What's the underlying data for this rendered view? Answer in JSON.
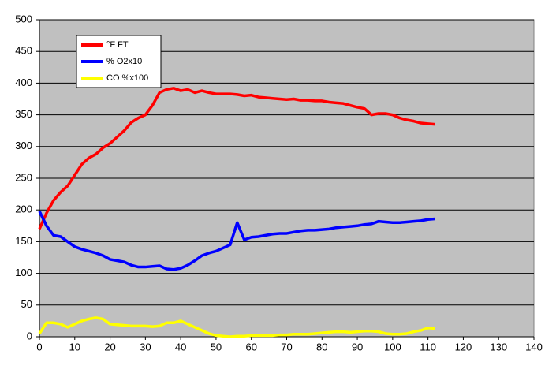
{
  "chart_data": {
    "type": "line",
    "x": [
      0,
      2,
      4,
      6,
      8,
      10,
      12,
      14,
      16,
      18,
      20,
      22,
      24,
      26,
      28,
      30,
      32,
      34,
      36,
      38,
      40,
      42,
      44,
      46,
      48,
      50,
      52,
      54,
      56,
      58,
      60,
      62,
      64,
      66,
      68,
      70,
      72,
      74,
      76,
      78,
      80,
      82,
      84,
      86,
      88,
      90,
      92,
      94,
      96,
      98,
      100,
      102,
      104,
      106,
      108,
      110,
      112
    ],
    "series": [
      {
        "name": "°F FT",
        "color": "#ff0000",
        "values": [
          170,
          195,
          215,
          228,
          238,
          255,
          272,
          282,
          288,
          298,
          305,
          315,
          325,
          338,
          345,
          350,
          365,
          385,
          390,
          392,
          388,
          390,
          385,
          388,
          385,
          383,
          383,
          383,
          382,
          380,
          381,
          378,
          377,
          376,
          375,
          374,
          375,
          373,
          373,
          372,
          372,
          370,
          369,
          368,
          365,
          362,
          360,
          350,
          352,
          352,
          350,
          345,
          342,
          340,
          337,
          336,
          335
        ]
      },
      {
        "name": "% O2x10",
        "color": "#0000ff",
        "values": [
          198,
          175,
          160,
          158,
          150,
          142,
          138,
          135,
          132,
          128,
          122,
          120,
          118,
          113,
          110,
          110,
          111,
          112,
          107,
          106,
          108,
          113,
          120,
          128,
          132,
          135,
          140,
          145,
          180,
          153,
          157,
          158,
          160,
          162,
          163,
          163,
          165,
          167,
          168,
          168,
          169,
          170,
          172,
          173,
          174,
          175,
          177,
          178,
          182,
          181,
          180,
          180,
          181,
          182,
          183,
          185,
          186
        ]
      },
      {
        "name": "CO %x100",
        "color": "#ffff00",
        "values": [
          5,
          22,
          22,
          20,
          15,
          20,
          25,
          28,
          30,
          28,
          20,
          19,
          18,
          17,
          17,
          17,
          16,
          17,
          22,
          22,
          25,
          20,
          15,
          10,
          5,
          2,
          1,
          0,
          1,
          1,
          2,
          2,
          2,
          2,
          3,
          3,
          4,
          4,
          4,
          5,
          6,
          7,
          8,
          8,
          7,
          8,
          9,
          9,
          8,
          5,
          4,
          4,
          5,
          8,
          10,
          14,
          13
        ]
      }
    ],
    "xlim": [
      0,
      140
    ],
    "xticks": [
      0,
      10,
      20,
      30,
      40,
      50,
      60,
      70,
      80,
      90,
      100,
      110,
      120,
      130,
      140
    ],
    "ylim": [
      0,
      500
    ],
    "yticks": [
      0,
      50,
      100,
      150,
      200,
      250,
      300,
      350,
      400,
      450,
      500
    ],
    "grid": true,
    "legend": "upper left",
    "plot_color": "#c0c0c0"
  }
}
